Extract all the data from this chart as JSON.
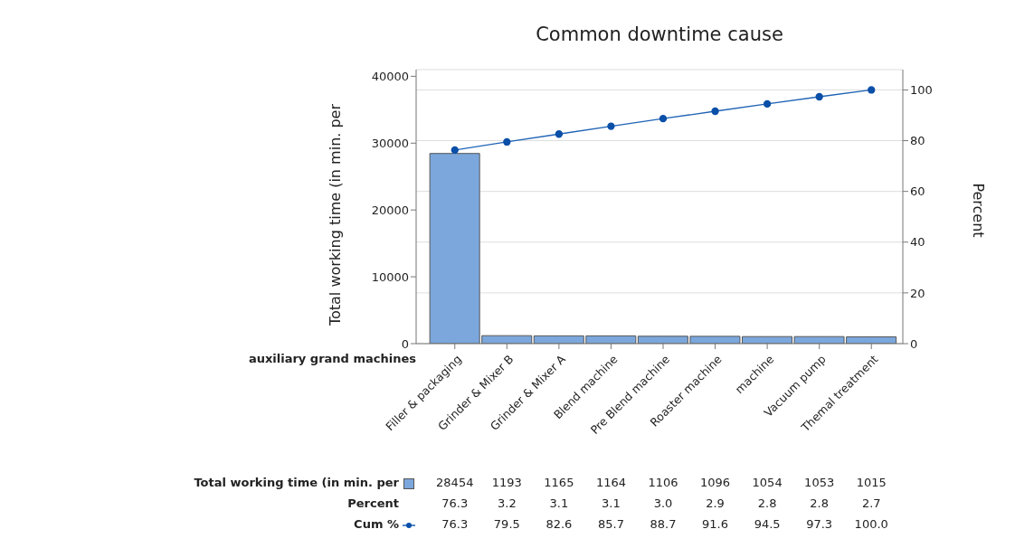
{
  "chart_data": {
    "type": "bar",
    "title": "Common downtime cause",
    "xlabel": "auxiliary grand machines",
    "ylabel": "Total working time (in min. per",
    "y2label": "Percent",
    "categories": [
      "Filler & packaging",
      "Grinder & Mixer B",
      "Grinder & Mixer A",
      "Blend machine",
      "Pre Blend machine",
      "Roaster machine",
      "machine",
      "Vacuum pump",
      "Themal treatment"
    ],
    "series": [
      {
        "name": "Total working time (in min. per",
        "color": "#7ba7dc",
        "values": [
          28454,
          1193,
          1165,
          1164,
          1106,
          1096,
          1054,
          1053,
          1015
        ],
        "value_labels": [
          "28454",
          "1193",
          "1165",
          "1164",
          "1106",
          "1096",
          "1054",
          "1053",
          "1015"
        ]
      },
      {
        "name": "Cum %",
        "type": "line",
        "axis": "y2",
        "color": "#1f63b5",
        "values": [
          76.3,
          79.5,
          82.6,
          85.7,
          88.7,
          91.6,
          94.5,
          97.3,
          100.0
        ],
        "value_labels": [
          "76.3",
          "79.5",
          "82.6",
          "85.7",
          "88.7",
          "91.6",
          "94.5",
          "97.3",
          "100.0"
        ]
      }
    ],
    "annotations": [
      "Percent",
      "76.3",
      "3.2",
      "3.1",
      "3.1",
      "3.0",
      "2.9",
      "2.8",
      "2.8",
      "2.7"
    ],
    "ylim": [
      0,
      41000
    ],
    "yticks": [
      0,
      10000,
      20000,
      30000,
      40000
    ],
    "y2lim": [
      0,
      108
    ],
    "y2ticks": [
      0,
      20,
      40,
      60,
      80,
      100
    ],
    "grid": "y2",
    "marker": "circle",
    "legend": "bottom"
  }
}
